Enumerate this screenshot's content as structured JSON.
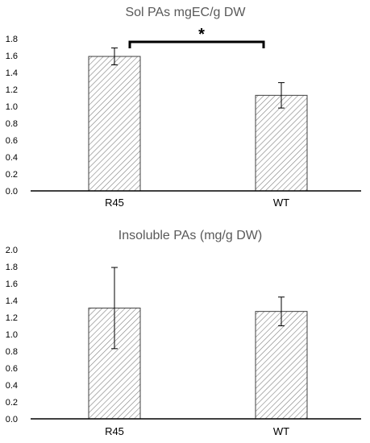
{
  "chart_data": [
    {
      "type": "bar",
      "title": "Sol PAs mgEC/g DW",
      "categories": [
        "R45",
        "WT"
      ],
      "values": [
        1.59,
        1.13
      ],
      "error": [
        0.1,
        0.15
      ],
      "ylim": [
        0,
        1.8
      ],
      "yticks": [
        "0.0",
        "0.2",
        "0.4",
        "0.6",
        "0.8",
        "1.0",
        "1.2",
        "1.4",
        "1.6",
        "1.8"
      ],
      "xlabel": "",
      "ylabel": "",
      "annotation": "*",
      "bar_pattern": "diagonal hatch",
      "colors": {
        "bar_fill": "#ffffff",
        "hatch": "#808080",
        "bar_edge": "#404040",
        "axis": "#000000",
        "title": "#595959"
      }
    },
    {
      "type": "bar",
      "title": "Insoluble PAs (mg/g DW)",
      "categories": [
        "R45",
        "WT"
      ],
      "values": [
        1.31,
        1.27
      ],
      "error": [
        0.48,
        0.17
      ],
      "ylim": [
        0,
        2.0
      ],
      "yticks": [
        "0.0",
        "0.2",
        "0.4",
        "0.6",
        "0.8",
        "1.0",
        "1.2",
        "1.4",
        "1.6",
        "1.8",
        "2.0"
      ],
      "xlabel": "",
      "ylabel": "",
      "bar_pattern": "diagonal hatch",
      "colors": {
        "bar_fill": "#ffffff",
        "hatch": "#808080",
        "bar_edge": "#404040",
        "axis": "#000000",
        "title": "#595959"
      }
    }
  ]
}
